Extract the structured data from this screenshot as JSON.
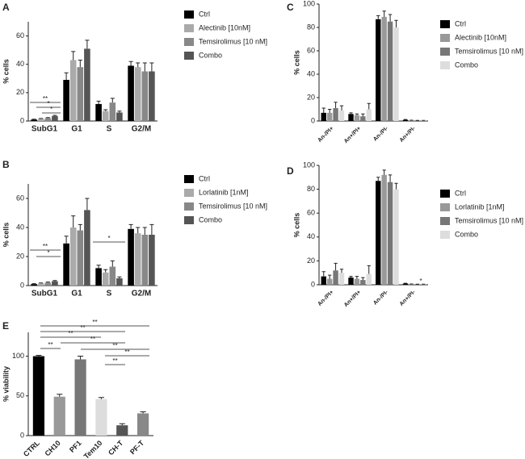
{
  "chart_data": [
    {
      "type": "bar",
      "panel": "A",
      "ylabel": "% cells",
      "categories": [
        "SubG1",
        "G1",
        "S",
        "G2/M"
      ],
      "series": [
        {
          "name": "Ctrl",
          "color": "#000000",
          "values": [
            1,
            29,
            12,
            39
          ],
          "errors": [
            0.3,
            5,
            2,
            3
          ]
        },
        {
          "name": "Alectinib [10nM]",
          "color": "#aaaaaa",
          "values": [
            1.5,
            43,
            7,
            38
          ],
          "errors": [
            0.3,
            6,
            1,
            3
          ]
        },
        {
          "name": "Temsirolimus [10 nM]",
          "color": "#888888",
          "values": [
            2,
            38,
            13,
            35
          ],
          "errors": [
            0.4,
            5,
            3,
            6
          ]
        },
        {
          "name": "Combo",
          "color": "#555555",
          "values": [
            3.5,
            51,
            6,
            35
          ],
          "errors": [
            0.5,
            6,
            1,
            6
          ]
        }
      ],
      "ylim": [
        0,
        70
      ],
      "yticks": [
        0,
        20,
        40,
        60
      ],
      "annotations": [
        "**",
        "*",
        "*"
      ]
    },
    {
      "type": "bar",
      "panel": "B",
      "ylabel": "% cells",
      "categories": [
        "SubG1",
        "G1",
        "S",
        "G2/M"
      ],
      "series": [
        {
          "name": "Ctrl",
          "color": "#000000",
          "values": [
            1,
            29,
            12,
            39
          ],
          "errors": [
            0.3,
            5,
            2,
            3
          ]
        },
        {
          "name": "Lorlatinib [1nM]",
          "color": "#aaaaaa",
          "values": [
            1.5,
            40,
            9,
            36
          ],
          "errors": [
            0.3,
            8,
            2,
            4
          ]
        },
        {
          "name": "Temsirolimus [10 nM]",
          "color": "#888888",
          "values": [
            2,
            38,
            13,
            35
          ],
          "errors": [
            0.4,
            4,
            4,
            5
          ]
        },
        {
          "name": "Combo",
          "color": "#555555",
          "values": [
            3,
            52,
            5,
            35
          ],
          "errors": [
            0.5,
            8,
            1,
            7
          ]
        }
      ],
      "ylim": [
        0,
        70
      ],
      "yticks": [
        0,
        20,
        40,
        60
      ],
      "annotations": [
        "**",
        "*",
        "*"
      ]
    },
    {
      "type": "bar",
      "panel": "C",
      "ylabel": "% cells",
      "categories": [
        "An-/PI+",
        "An+/PI+",
        "An-/PI-",
        "An+/PI-"
      ],
      "series": [
        {
          "name": "Ctrl",
          "color": "#000000",
          "values": [
            7,
            6,
            87,
            1
          ],
          "errors": [
            4,
            1,
            3,
            0.3
          ]
        },
        {
          "name": "Alectinib [10nM]",
          "color": "#999999",
          "values": [
            7,
            5,
            89,
            0.5
          ],
          "errors": [
            3,
            1,
            5,
            0.2
          ]
        },
        {
          "name": "Temsirolimus [10 nM]",
          "color": "#777777",
          "values": [
            11,
            4,
            85,
            0.3
          ],
          "errors": [
            5,
            2,
            6,
            0.2
          ]
        },
        {
          "name": "Combo",
          "color": "#dddddd",
          "values": [
            9,
            10,
            80,
            0.3
          ],
          "errors": [
            4,
            5,
            6,
            0.2
          ]
        }
      ],
      "ylim": [
        0,
        100
      ],
      "yticks": [
        0,
        20,
        40,
        60,
        80,
        100
      ],
      "annotations": []
    },
    {
      "type": "bar",
      "panel": "D",
      "ylabel": "% cells",
      "categories": [
        "An-/PI+",
        "An+/PI+",
        "An-/PI-",
        "An+/PI-"
      ],
      "series": [
        {
          "name": "Ctrl",
          "color": "#000000",
          "values": [
            7,
            6,
            87,
            1
          ],
          "errors": [
            4,
            1,
            3,
            0.3
          ]
        },
        {
          "name": "Lorlatinib [1nM]",
          "color": "#999999",
          "values": [
            5,
            5,
            92,
            0.5
          ],
          "errors": [
            3,
            2,
            4,
            0.2
          ]
        },
        {
          "name": "Temsirolimus [10 nM]",
          "color": "#777777",
          "values": [
            12,
            4,
            86,
            0.3
          ],
          "errors": [
            6,
            2,
            6,
            0.2
          ]
        },
        {
          "name": "Combo",
          "color": "#dddddd",
          "values": [
            10,
            9,
            80,
            0.3
          ],
          "errors": [
            3,
            7,
            5,
            0.2
          ]
        }
      ],
      "ylim": [
        0,
        100
      ],
      "yticks": [
        0,
        20,
        40,
        60,
        80,
        100
      ],
      "annotations": [
        "*"
      ]
    },
    {
      "type": "bar",
      "panel": "E",
      "ylabel": "% viability",
      "categories": [
        "CTRL",
        "CH10",
        "PF1",
        "Tem10",
        "CH-T",
        "PF-T"
      ],
      "values": [
        100,
        49,
        96,
        46,
        13,
        28
      ],
      "errors": [
        1,
        3,
        4,
        2,
        2,
        2
      ],
      "colors": [
        "#000000",
        "#999999",
        "#777777",
        "#dddddd",
        "#555555",
        "#888888"
      ],
      "ylim": [
        0,
        130
      ],
      "yticks": [
        0,
        50,
        100
      ],
      "annotations": [
        "**",
        "**",
        "**",
        "**",
        "**",
        "**",
        "**",
        "**"
      ]
    }
  ]
}
